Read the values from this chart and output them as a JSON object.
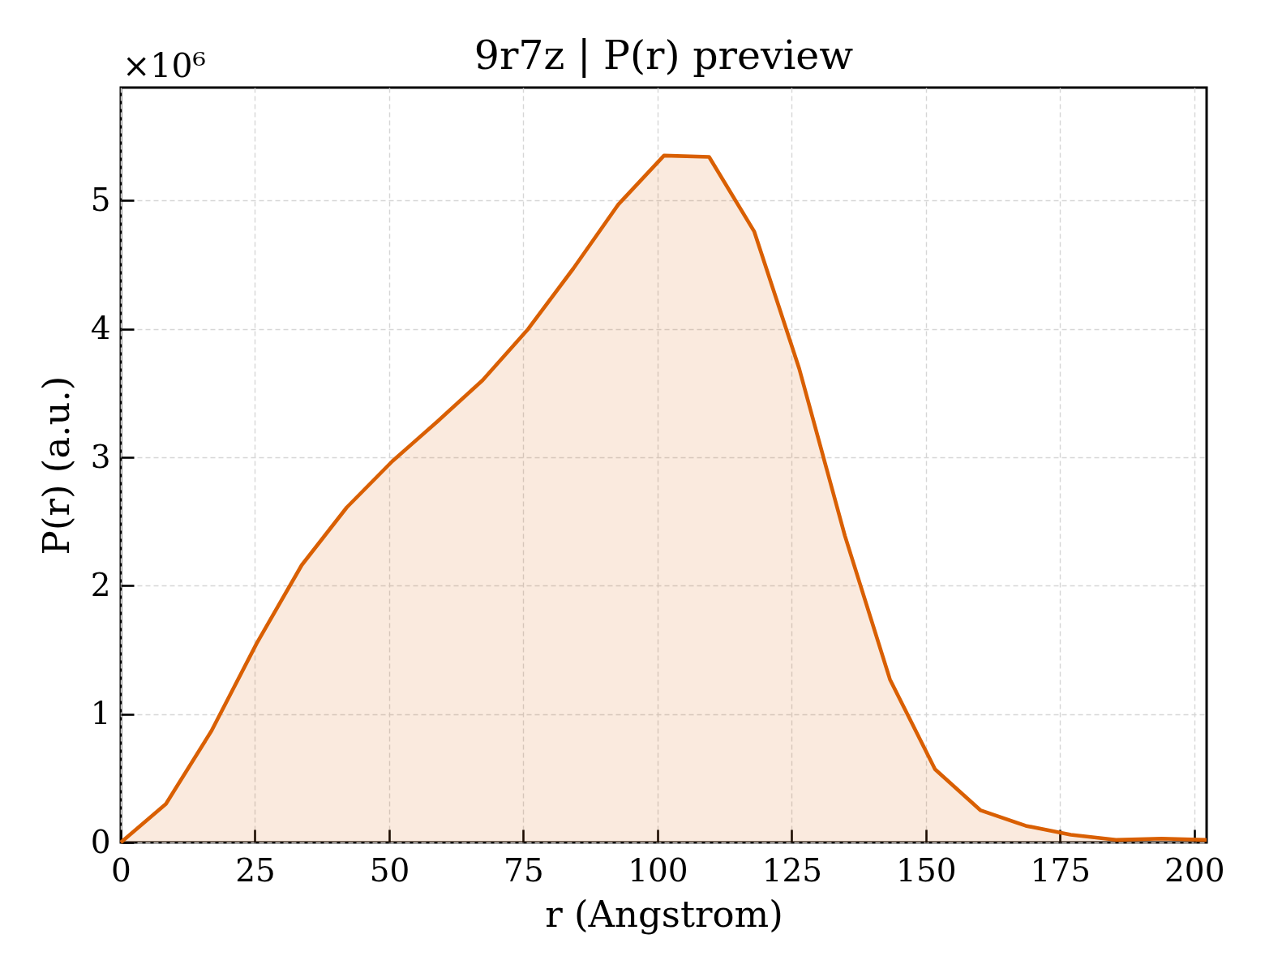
{
  "chart_data": {
    "type": "area",
    "title": "9r7z | P(r) preview",
    "xlabel": "r (Angstrom)",
    "ylabel": "P(r) (a.u.)",
    "annotations": [
      "×10⁶"
    ],
    "x": [
      0,
      8.4,
      16.9,
      25.3,
      33.7,
      42.1,
      50.6,
      59.0,
      67.4,
      75.9,
      84.3,
      92.7,
      101.2,
      109.6,
      118.0,
      126.4,
      134.9,
      143.3,
      151.7,
      160.2,
      168.6,
      177.0,
      185.4,
      193.9,
      202.3
    ],
    "series": [
      {
        "color": "#d95f02",
        "values": [
          0,
          0.3,
          0.87,
          1.55,
          2.16,
          2.61,
          2.97,
          3.28,
          3.6,
          4.0,
          4.47,
          4.97,
          5.35,
          5.34,
          4.76,
          3.69,
          2.39,
          1.27,
          0.57,
          0.25,
          0.13,
          0.06,
          0.02,
          0.03,
          0.02
        ]
      }
    ],
    "xlim": [
      0,
      202.3
    ],
    "xticks": [
      0,
      25,
      50,
      75,
      100,
      125,
      150,
      175,
      200
    ],
    "ylim": [
      0,
      5.88
    ],
    "yticks": [
      0,
      1,
      2,
      3,
      4,
      5
    ],
    "grid": true,
    "marker": "none",
    "line_style": "solid"
  }
}
